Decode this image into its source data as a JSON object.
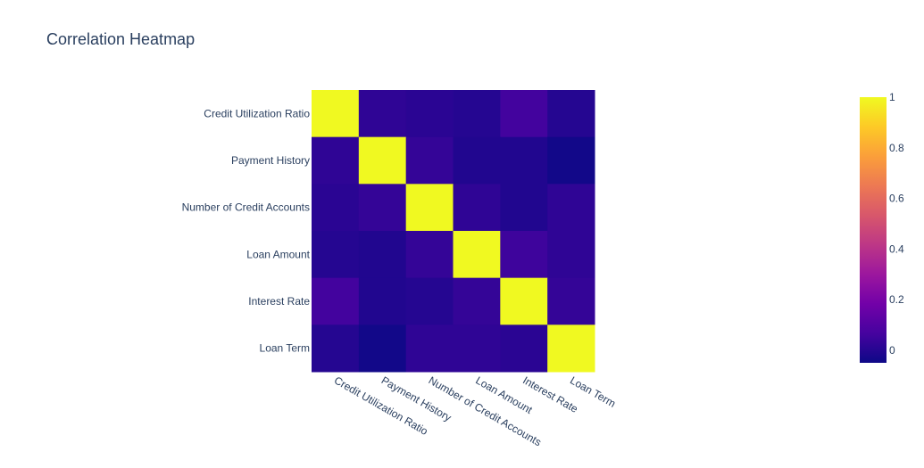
{
  "chart_data": {
    "type": "heatmap",
    "title": "Correlation Heatmap",
    "x": [
      "Credit Utilization Ratio",
      "Payment History",
      "Number of Credit Accounts",
      "Loan Amount",
      "Interest Rate",
      "Loan Term"
    ],
    "y": [
      "Credit Utilization Ratio",
      "Payment History",
      "Number of Credit Accounts",
      "Loan Amount",
      "Interest Rate",
      "Loan Term"
    ],
    "z": [
      [
        1.0,
        0.02,
        0.01,
        0.0,
        0.06,
        0.0
      ],
      [
        0.02,
        1.0,
        0.03,
        -0.01,
        -0.01,
        -0.04
      ],
      [
        0.01,
        0.03,
        1.0,
        0.02,
        -0.01,
        0.02
      ],
      [
        0.0,
        -0.01,
        0.03,
        1.0,
        0.05,
        0.02
      ],
      [
        0.06,
        -0.01,
        0.0,
        0.03,
        1.0,
        0.03
      ],
      [
        0.0,
        -0.04,
        0.02,
        0.02,
        0.01,
        1.0
      ]
    ],
    "colorscale": "plasma",
    "zrange": [
      -0.05,
      1.0
    ],
    "colorbar": {
      "ticks": [
        0,
        0.2,
        0.4,
        0.6,
        0.8,
        1
      ],
      "tick_labels": [
        "0",
        "0.2",
        "0.4",
        "0.6",
        "0.8",
        "1"
      ]
    },
    "xlabel": "",
    "ylabel": "",
    "grid": false
  }
}
